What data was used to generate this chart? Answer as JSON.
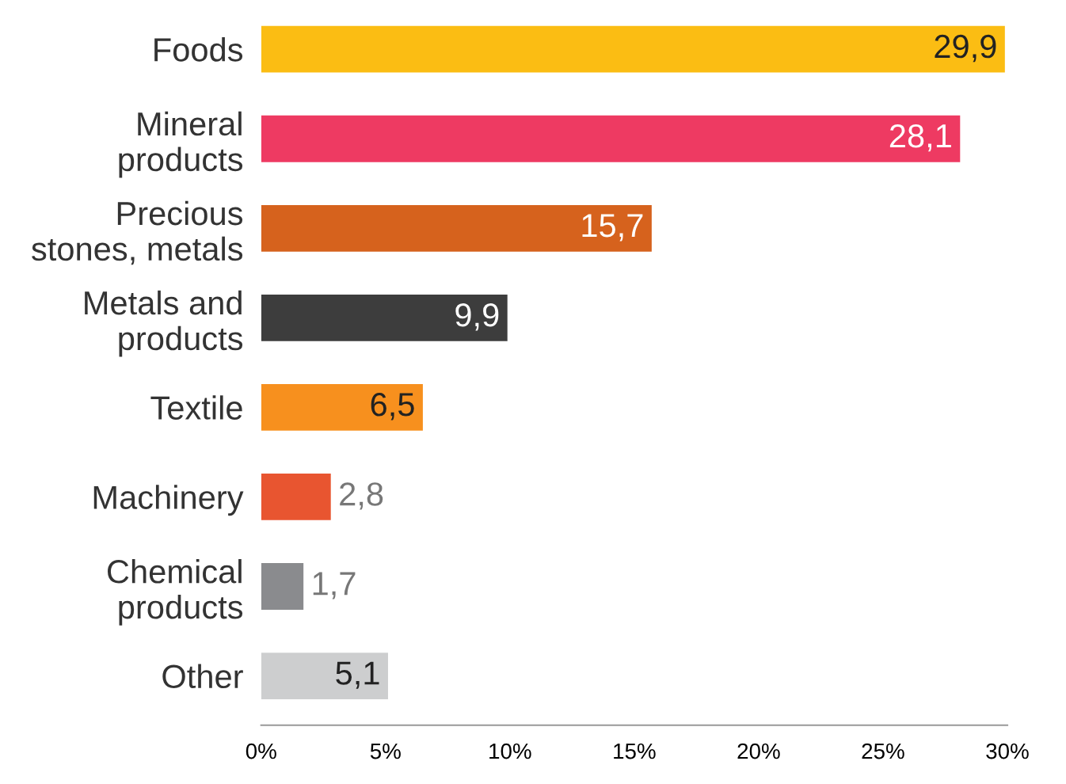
{
  "chart_data": {
    "type": "bar",
    "orientation": "horizontal",
    "categories": [
      "Foods",
      "Mineral\nproducts",
      "Precious\nstones, metals",
      "Metals and\nproducts",
      "Textile",
      "Machinery",
      "Chemical\nproducts",
      "Other"
    ],
    "values": [
      29.9,
      28.1,
      15.7,
      9.9,
      6.5,
      2.8,
      1.7,
      5.1
    ],
    "value_labels": [
      "29,9",
      "28,1",
      "15,7",
      "9,9",
      "6,5",
      "2,8",
      "1,7",
      "5,1"
    ],
    "colors": [
      "#fbbd13",
      "#ee3a62",
      "#d6621d",
      "#3d3d3d",
      "#f7901e",
      "#e85530",
      "#8a8b8e",
      "#cdcecf"
    ],
    "xlim": [
      0,
      30
    ],
    "xticks": [
      {
        "value": 0,
        "label": "0%"
      },
      {
        "value": 5,
        "label": "5%"
      },
      {
        "value": 10,
        "label": "10%"
      },
      {
        "value": 15,
        "label": "15%"
      },
      {
        "value": 20,
        "label": "20%"
      },
      {
        "value": 25,
        "label": "25%"
      },
      {
        "value": 30,
        "label": "30%"
      }
    ],
    "grid": false,
    "legend": false
  }
}
